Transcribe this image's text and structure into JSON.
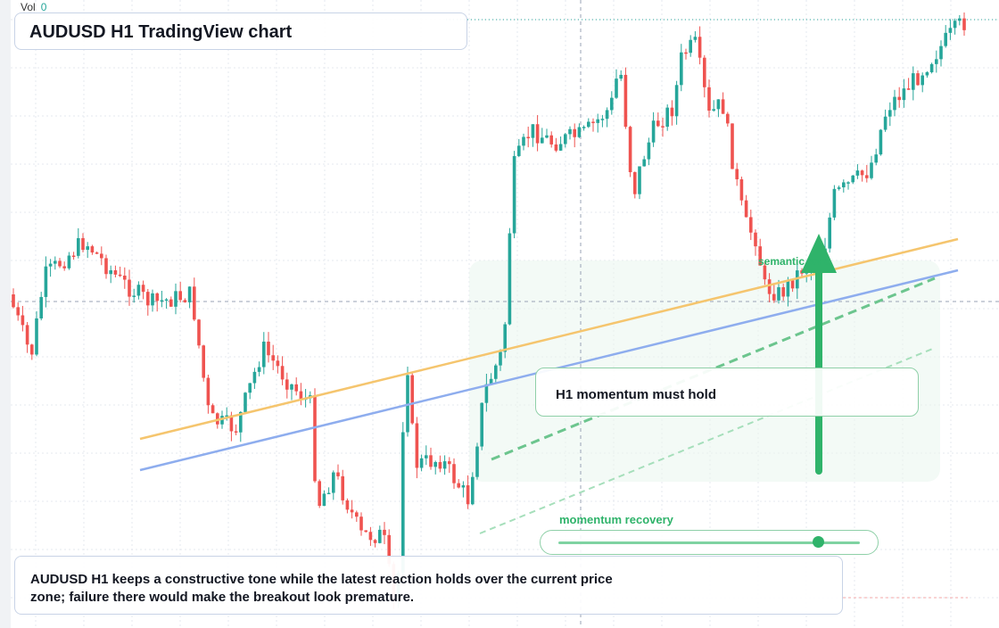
{
  "header": {
    "vol_label": "Vol",
    "vol_value": "0"
  },
  "title": "AUDUSD H1 TradingView chart",
  "callout": {
    "text": "H1 momentum must hold"
  },
  "semantic_label": "semantic tone",
  "momentum": {
    "label": "momentum recovery",
    "level": 0.86
  },
  "summary": "AUDUSD H1 keeps a constructive tone while the latest reaction holds over the current price zone; failure there would make the breakout look premature.",
  "colors": {
    "bull": "#26a69a",
    "bear": "#ef5350",
    "accent": "#2fb36a",
    "trend_orange": "#f5c56e",
    "trend_blue": "#8eadee",
    "grid": "#e6e9ef"
  },
  "chart_data": {
    "type": "candlestick",
    "symbol": "AUDUSD",
    "timeframe": "H1"
  }
}
